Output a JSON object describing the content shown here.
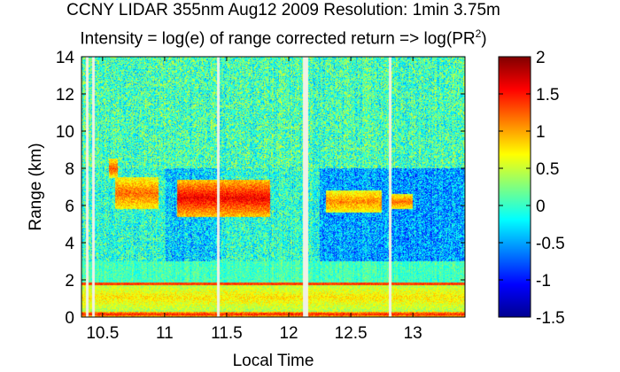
{
  "chart_data": {
    "type": "heatmap",
    "title": "CCNY LIDAR 355nm Aug12 2009 Resolution: 1min 3.75m",
    "subtitle_main": "Intensity = log(e) of range corrected return => log(PR",
    "subtitle_sup": "2",
    "subtitle_end": ")",
    "xlabel": "Local Time",
    "ylabel": "Range (km)",
    "xlim": [
      10.33,
      13.42
    ],
    "ylim": [
      0,
      14
    ],
    "xticks": [
      10.5,
      11,
      11.5,
      12,
      12.5,
      13
    ],
    "xtick_labels": [
      "10.5",
      "11",
      "11.5",
      "12",
      "12.5",
      "13"
    ],
    "yticks": [
      0,
      2,
      4,
      6,
      8,
      10,
      12,
      14
    ],
    "ytick_labels": [
      "0",
      "2",
      "4",
      "6",
      "8",
      "10",
      "12",
      "14"
    ],
    "colormap": "jet",
    "colorbar": {
      "range": [
        -1.5,
        2
      ],
      "ticks": [
        -1.5,
        -1,
        -0.5,
        0,
        0.5,
        1,
        1.5,
        2
      ],
      "tick_labels": [
        "-1.5",
        "-1",
        "-0.5",
        "0",
        "0.5",
        "1",
        "1.5",
        "2"
      ]
    },
    "data_gaps_local_time": [
      10.37,
      10.42,
      11.43,
      12.12,
      12.14,
      12.81
    ],
    "layers": [
      {
        "name": "boundary-layer",
        "t_start": 10.33,
        "t_end": 13.42,
        "z_bottom": 0.3,
        "z_top": 1.8,
        "value": 0.75
      },
      {
        "name": "surface-layer",
        "t_start": 10.33,
        "t_end": 13.42,
        "z_bottom": 0.0,
        "z_top": 0.3,
        "value": 1.5
      },
      {
        "name": "cloud-layer-1",
        "t_start": 10.55,
        "t_end": 10.62,
        "z_bottom": 7.5,
        "z_top": 8.5,
        "value": 1.3
      },
      {
        "name": "cloud-layer-2",
        "t_start": 10.6,
        "t_end": 10.95,
        "z_bottom": 5.8,
        "z_top": 7.5,
        "value": 1.2
      },
      {
        "name": "cloud-layer-3",
        "t_start": 11.1,
        "t_end": 11.85,
        "z_bottom": 5.4,
        "z_top": 7.4,
        "value": 1.6
      },
      {
        "name": "cloud-layer-4",
        "t_start": 12.3,
        "t_end": 12.75,
        "z_bottom": 5.6,
        "z_top": 6.8,
        "value": 1.1
      },
      {
        "name": "cloud-layer-5",
        "t_start": 12.82,
        "t_end": 13.0,
        "z_bottom": 5.8,
        "z_top": 6.6,
        "value": 1.2
      }
    ]
  }
}
